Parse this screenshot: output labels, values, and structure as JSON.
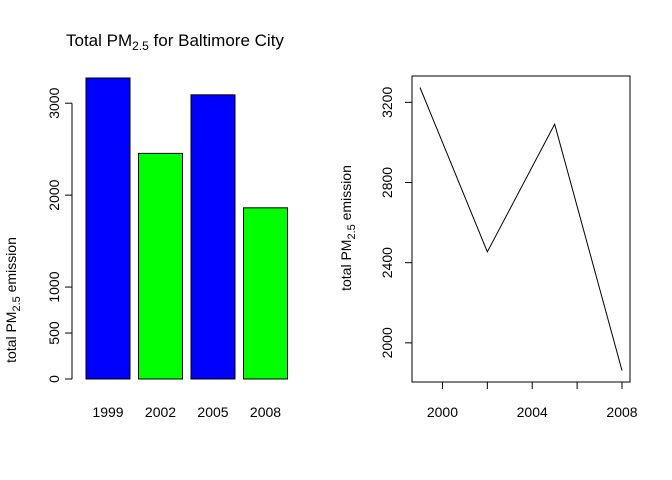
{
  "chart_data": [
    {
      "type": "bar",
      "title": "Total PM",
      "title_subscript": "2.5",
      "title_suffix": " for Baltimore City",
      "ylabel": "total PM",
      "ylabel_subscript": "2.5",
      "ylabel_suffix": " emission",
      "categories": [
        "1999",
        "2002",
        "2005",
        "2008"
      ],
      "values": [
        3274,
        2454,
        3091,
        1862
      ],
      "bar_colors": [
        "#0000ff",
        "#00ff00",
        "#0000ff",
        "#00ff00"
      ],
      "yticks": [
        0,
        500,
        1000,
        2000,
        3000
      ],
      "ytick_labels": [
        "0",
        "500",
        "1000",
        "2000",
        "3000"
      ],
      "ylim": [
        0,
        3274
      ],
      "grid": false,
      "legend": "none"
    },
    {
      "type": "line",
      "ylabel": "total PM",
      "ylabel_subscript": "2.5",
      "ylabel_suffix": " emission",
      "x": [
        1999,
        2002,
        2005,
        2008
      ],
      "y": [
        3274,
        2454,
        3091,
        1862
      ],
      "xticks": [
        2000,
        2002,
        2004,
        2006,
        2008
      ],
      "xtick_labels": [
        "2000",
        "",
        "2004",
        "",
        "2008"
      ],
      "yticks": [
        2000,
        2400,
        2800,
        3200
      ],
      "ytick_labels": [
        "2000",
        "2400",
        "2800",
        "3200"
      ],
      "xlim": [
        1999,
        2008
      ],
      "ylim": [
        1862,
        3274
      ],
      "line_color": "#000000",
      "grid": false,
      "legend": "none"
    }
  ]
}
